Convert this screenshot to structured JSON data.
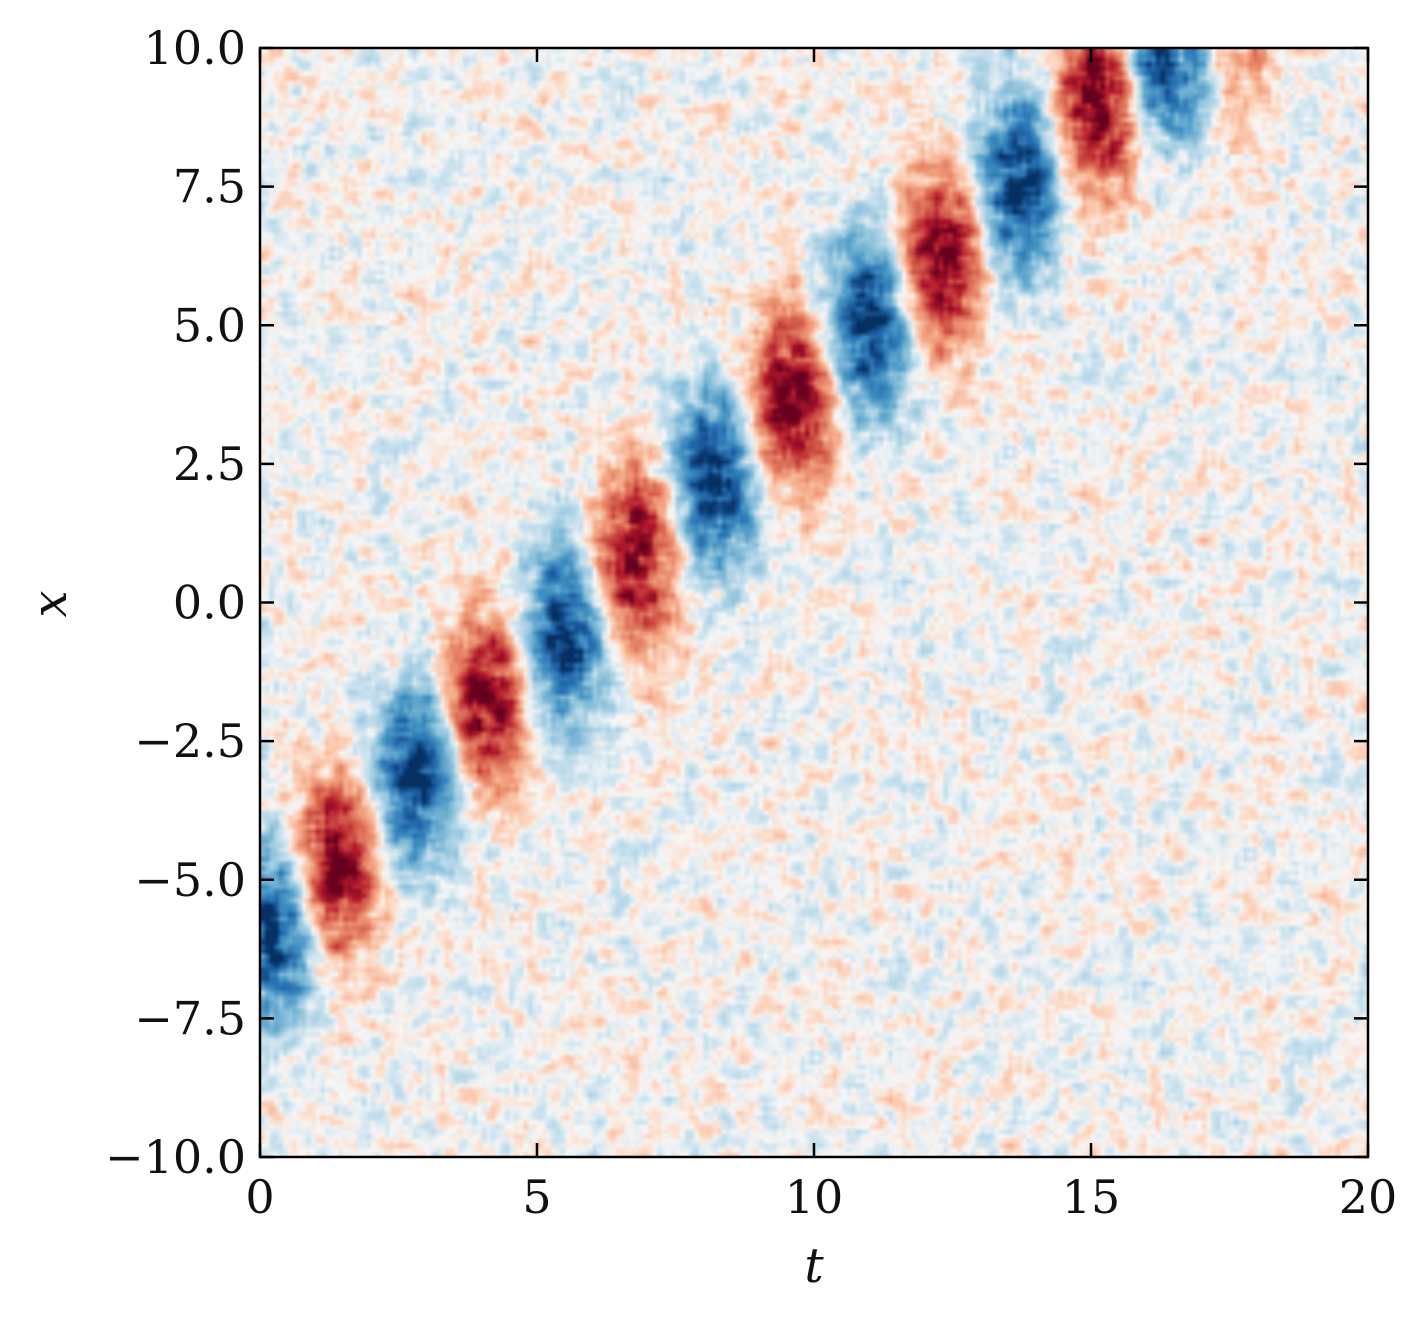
{
  "chart_data": {
    "type": "heatmap",
    "title": "",
    "xlabel": "t",
    "ylabel": "x",
    "xlim": [
      0,
      20
    ],
    "ylim": [
      -10,
      10
    ],
    "xticks": [
      0,
      5,
      10,
      15,
      20
    ],
    "xtick_labels": [
      "0",
      "5",
      "10",
      "15",
      "20"
    ],
    "yticks": [
      -10,
      -7.5,
      -5,
      -2.5,
      0,
      2.5,
      5,
      7.5,
      10
    ],
    "ytick_labels": [
      "−10.0",
      "−7.5",
      "−5.0",
      "−2.5",
      "0.0",
      "2.5",
      "5.0",
      "7.5",
      "10.0"
    ],
    "colormap": "RdBu_r",
    "colors": {
      "positive": "#b2182b",
      "negative": "#2166ac",
      "zero": "#f7f7f7"
    },
    "grid": false,
    "colorbar": false,
    "noise_amplitude": 0.18,
    "packets": [
      {
        "t": 0.2,
        "x": -6.0,
        "sign": -1
      },
      {
        "t": 1.4,
        "x": -4.7,
        "sign": 1
      },
      {
        "t": 2.8,
        "x": -3.1,
        "sign": -1
      },
      {
        "t": 4.1,
        "x": -1.8,
        "sign": 1
      },
      {
        "t": 5.5,
        "x": -0.6,
        "sign": -1
      },
      {
        "t": 6.8,
        "x": 0.8,
        "sign": 1
      },
      {
        "t": 8.2,
        "x": 2.2,
        "sign": -1
      },
      {
        "t": 9.6,
        "x": 3.7,
        "sign": 1
      },
      {
        "t": 11.0,
        "x": 5.0,
        "sign": -1
      },
      {
        "t": 12.3,
        "x": 6.2,
        "sign": 1
      },
      {
        "t": 13.7,
        "x": 7.6,
        "sign": -1
      },
      {
        "t": 15.1,
        "x": 8.9,
        "sign": 1
      },
      {
        "t": 16.4,
        "x": 10.0,
        "sign": -1
      },
      {
        "t": 17.7,
        "x": 10.4,
        "sign": 0.35
      }
    ]
  }
}
